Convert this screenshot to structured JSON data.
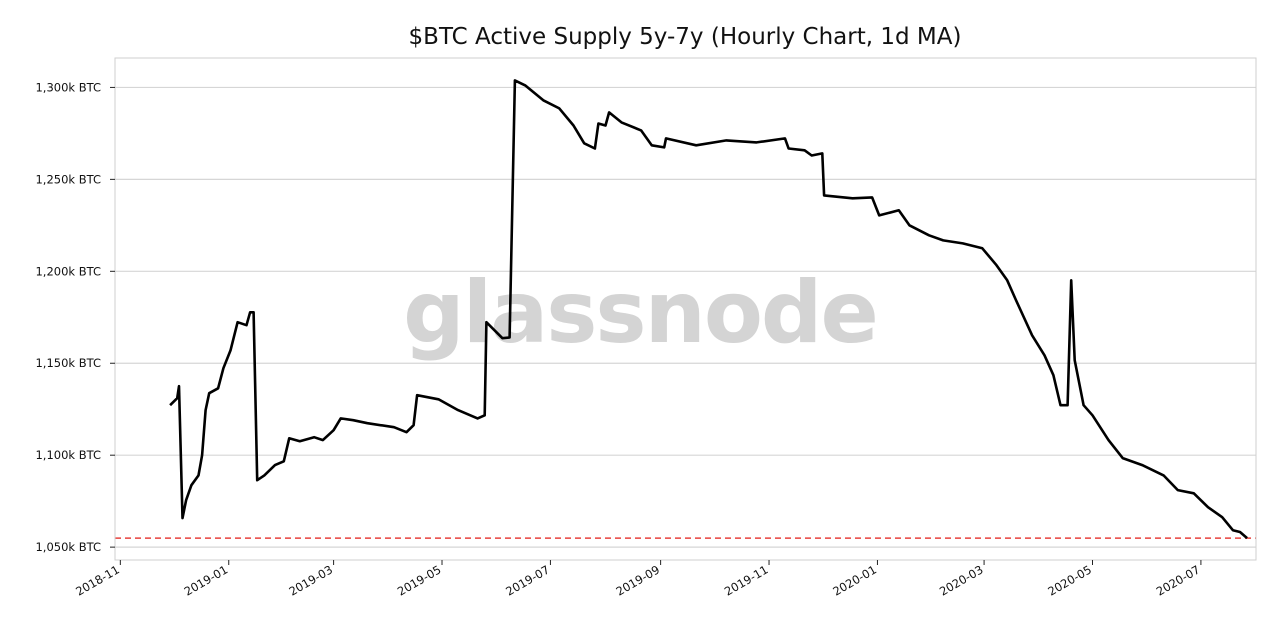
{
  "chart_data": {
    "type": "line",
    "title": "$BTC Active Supply 5y-7y (Hourly Chart, 1d MA)",
    "xlabel": "",
    "ylabel": "",
    "watermark": "glassnode",
    "y_unit_suffix": "k BTC",
    "ylim": [
      1043,
      1316
    ],
    "xlim": [
      "2018-10-29",
      "2020-08-01"
    ],
    "grid": "horizontal",
    "y_ticks": [
      1050,
      1100,
      1150,
      1200,
      1250,
      1300
    ],
    "y_tick_labels": [
      "1,050k BTC",
      "1,100k BTC",
      "1,150k BTC",
      "1,200k BTC",
      "1,250k BTC",
      "1,300k BTC"
    ],
    "x_ticks": [
      "2018-11-01",
      "2019-01-01",
      "2019-03-01",
      "2019-05-01",
      "2019-07-01",
      "2019-09-01",
      "2019-11-01",
      "2020-01-01",
      "2020-03-01",
      "2020-05-01",
      "2020-07-01"
    ],
    "x_tick_labels": [
      "2018-11",
      "2019-01",
      "2019-03",
      "2019-05",
      "2019-07",
      "2019-09",
      "2019-11",
      "2020-01",
      "2020-03",
      "2020-05",
      "2020-07"
    ],
    "reference_line": {
      "value": 1054.9,
      "color": "#e8413c",
      "style": "dashed"
    },
    "series": [
      {
        "name": "Active Supply 5y-7y",
        "color": "#000000",
        "points": [
          [
            "2018-11-29",
            1127.2
          ],
          [
            "2018-12-03",
            1131.0
          ],
          [
            "2018-12-04",
            1137.5
          ],
          [
            "2018-12-06",
            1065.8
          ],
          [
            "2018-12-08",
            1075.5
          ],
          [
            "2018-12-11",
            1083.7
          ],
          [
            "2018-12-15",
            1089.0
          ],
          [
            "2018-12-17",
            1100.0
          ],
          [
            "2018-12-19",
            1124.5
          ],
          [
            "2018-12-21",
            1133.7
          ],
          [
            "2018-12-26",
            1136.4
          ],
          [
            "2018-12-29",
            1147.3
          ],
          [
            "2019-01-02",
            1157.0
          ],
          [
            "2019-01-06",
            1172.3
          ],
          [
            "2019-01-11",
            1170.7
          ],
          [
            "2019-01-13",
            1177.7
          ],
          [
            "2019-01-15",
            1177.7
          ],
          [
            "2019-01-17",
            1086.4
          ],
          [
            "2019-01-21",
            1089.0
          ],
          [
            "2019-01-27",
            1094.6
          ],
          [
            "2019-02-01",
            1096.7
          ],
          [
            "2019-02-04",
            1109.2
          ],
          [
            "2019-02-10",
            1107.6
          ],
          [
            "2019-02-18",
            1109.8
          ],
          [
            "2019-02-23",
            1108.2
          ],
          [
            "2019-03-01",
            1113.6
          ],
          [
            "2019-03-05",
            1120.0
          ],
          [
            "2019-03-12",
            1119.0
          ],
          [
            "2019-03-20",
            1117.4
          ],
          [
            "2019-04-04",
            1115.2
          ],
          [
            "2019-04-11",
            1112.5
          ],
          [
            "2019-04-15",
            1116.3
          ],
          [
            "2019-04-17",
            1132.6
          ],
          [
            "2019-04-29",
            1130.4
          ],
          [
            "2019-05-10",
            1124.5
          ],
          [
            "2019-05-21",
            1120.0
          ],
          [
            "2019-05-25",
            1121.7
          ],
          [
            "2019-05-26",
            1172.3
          ],
          [
            "2019-06-04",
            1163.6
          ],
          [
            "2019-06-08",
            1164.0
          ],
          [
            "2019-06-11",
            1303.8
          ],
          [
            "2019-06-17",
            1301.0
          ],
          [
            "2019-06-27",
            1293.0
          ],
          [
            "2019-07-06",
            1288.6
          ],
          [
            "2019-07-14",
            1279.3
          ],
          [
            "2019-07-20",
            1269.6
          ],
          [
            "2019-07-26",
            1266.8
          ],
          [
            "2019-07-28",
            1280.4
          ],
          [
            "2019-08-01",
            1279.3
          ],
          [
            "2019-08-03",
            1286.4
          ],
          [
            "2019-08-10",
            1281.0
          ],
          [
            "2019-08-21",
            1276.6
          ],
          [
            "2019-08-27",
            1268.5
          ],
          [
            "2019-09-03",
            1267.4
          ],
          [
            "2019-09-04",
            1272.3
          ],
          [
            "2019-09-21",
            1268.5
          ],
          [
            "2019-10-08",
            1271.2
          ],
          [
            "2019-10-25",
            1270.1
          ],
          [
            "2019-11-10",
            1272.3
          ],
          [
            "2019-11-12",
            1266.8
          ],
          [
            "2019-11-21",
            1265.8
          ],
          [
            "2019-11-25",
            1263.0
          ],
          [
            "2019-12-01",
            1264.1
          ],
          [
            "2019-12-02",
            1241.3
          ],
          [
            "2019-12-18",
            1239.7
          ],
          [
            "2019-12-29",
            1240.2
          ],
          [
            "2020-01-02",
            1230.4
          ],
          [
            "2020-01-13",
            1233.2
          ],
          [
            "2020-01-19",
            1225.0
          ],
          [
            "2020-01-30",
            1219.6
          ],
          [
            "2020-02-07",
            1216.8
          ],
          [
            "2020-02-18",
            1215.2
          ],
          [
            "2020-02-29",
            1212.5
          ],
          [
            "2020-03-08",
            1203.3
          ],
          [
            "2020-03-14",
            1195.1
          ],
          [
            "2020-03-19",
            1184.2
          ],
          [
            "2020-03-28",
            1165.2
          ],
          [
            "2020-04-04",
            1154.3
          ],
          [
            "2020-04-09",
            1143.5
          ],
          [
            "2020-04-13",
            1127.2
          ],
          [
            "2020-04-17",
            1127.2
          ],
          [
            "2020-04-19",
            1195.1
          ],
          [
            "2020-04-21",
            1151.6
          ],
          [
            "2020-04-26",
            1127.2
          ],
          [
            "2020-05-01",
            1121.7
          ],
          [
            "2020-05-10",
            1108.2
          ],
          [
            "2020-05-18",
            1098.4
          ],
          [
            "2020-05-29",
            1094.6
          ],
          [
            "2020-06-10",
            1089.0
          ],
          [
            "2020-06-18",
            1081.0
          ],
          [
            "2020-06-27",
            1079.3
          ],
          [
            "2020-07-05",
            1071.7
          ],
          [
            "2020-07-13",
            1066.3
          ],
          [
            "2020-07-19",
            1059.2
          ],
          [
            "2020-07-23",
            1058.2
          ],
          [
            "2020-07-27",
            1054.9
          ]
        ]
      }
    ]
  }
}
